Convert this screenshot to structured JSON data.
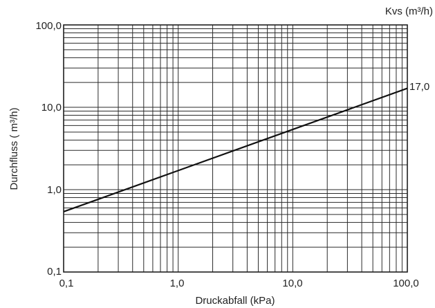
{
  "chart_data": {
    "type": "line",
    "title": "",
    "xlabel": "Druckabfall (kPa)",
    "ylabel": "Durchfluss ( m³/h)",
    "x_scale": "log",
    "y_scale": "log",
    "xlim": [
      0.1,
      100
    ],
    "ylim": [
      0.1,
      100
    ],
    "x_ticks": [
      "0,1",
      "1,0",
      "10,0",
      "100,0"
    ],
    "y_ticks": [
      "0,1",
      "1,0",
      "10,0",
      "100,0"
    ],
    "grid": true,
    "series": [
      {
        "x": [
          0.1,
          100
        ],
        "y": [
          0.54,
          17.0
        ],
        "end_label": "17,0"
      }
    ],
    "series_header": "Kvs (m³/h)"
  }
}
